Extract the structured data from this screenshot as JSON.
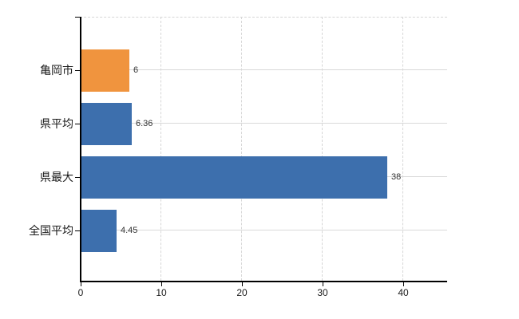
{
  "chart_data": {
    "type": "bar",
    "orientation": "horizontal",
    "title": "",
    "categories": [
      "亀岡市",
      "県平均",
      "県最大",
      "全国平均"
    ],
    "values": [
      6,
      6.36,
      38,
      4.45
    ],
    "value_labels": [
      "6",
      "6.36",
      "38",
      "4.45"
    ],
    "bar_colors": [
      "#f0943e",
      "#3d6fad",
      "#3d6fad",
      "#3d6fad"
    ],
    "x_axis": {
      "ticks": [
        0,
        10,
        20,
        30,
        40
      ],
      "tick_labels": [
        "0",
        "10",
        "20",
        "30",
        "40"
      ],
      "range": [
        0,
        45.5
      ]
    },
    "grid": {
      "vertical_style": "dashed",
      "horizontal_style": "solid",
      "top_border_style": "dashed"
    },
    "colors": {
      "accent_orange": "#f0943e",
      "series_blue": "#3d6fad",
      "grid": "#d9d9d9",
      "axis": "#000000",
      "text": "#1a1a1a"
    }
  }
}
